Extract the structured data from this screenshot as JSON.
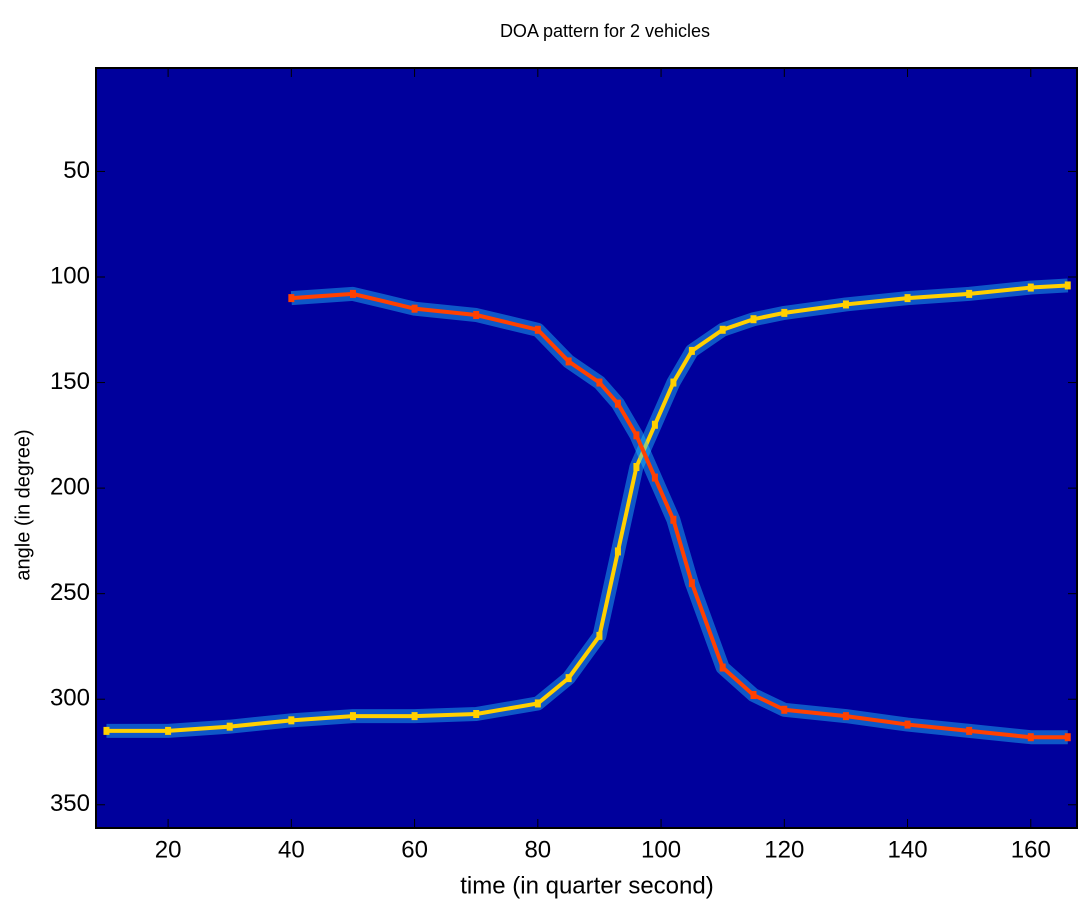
{
  "chart_data": {
    "type": "heatmap",
    "title": "DOA pattern for 2 vehicles",
    "x_label": "time (in quarter second)",
    "y_label": "angle (in degree)",
    "x": [
      10,
      20,
      30,
      40,
      50,
      60,
      70,
      80,
      85,
      90,
      93,
      96,
      99,
      102,
      105,
      110,
      115,
      120,
      130,
      140,
      150,
      160,
      166
    ],
    "series": [
      {
        "color": "#ffd000",
        "values": [
          315,
          315,
          313,
          310,
          308,
          308,
          307,
          302,
          290,
          270,
          230,
          190,
          170,
          150,
          135,
          125,
          120,
          117,
          113,
          110,
          108,
          105,
          104
        ]
      },
      {
        "color": "#ff4000",
        "values": [
          null,
          null,
          null,
          110,
          108,
          115,
          118,
          125,
          140,
          150,
          160,
          175,
          195,
          215,
          245,
          285,
          298,
          305,
          308,
          312,
          315,
          318,
          318
        ]
      }
    ],
    "background": "#00009c",
    "glow": "#20c0ff",
    "xlim": [
      8.3,
      167.5
    ],
    "xticks": [
      20,
      40,
      60,
      80,
      100,
      120,
      140,
      160
    ],
    "ylim": [
      1,
      361
    ],
    "yticks": [
      50,
      100,
      150,
      200,
      250,
      300,
      350
    ],
    "y_reversed": true
  }
}
